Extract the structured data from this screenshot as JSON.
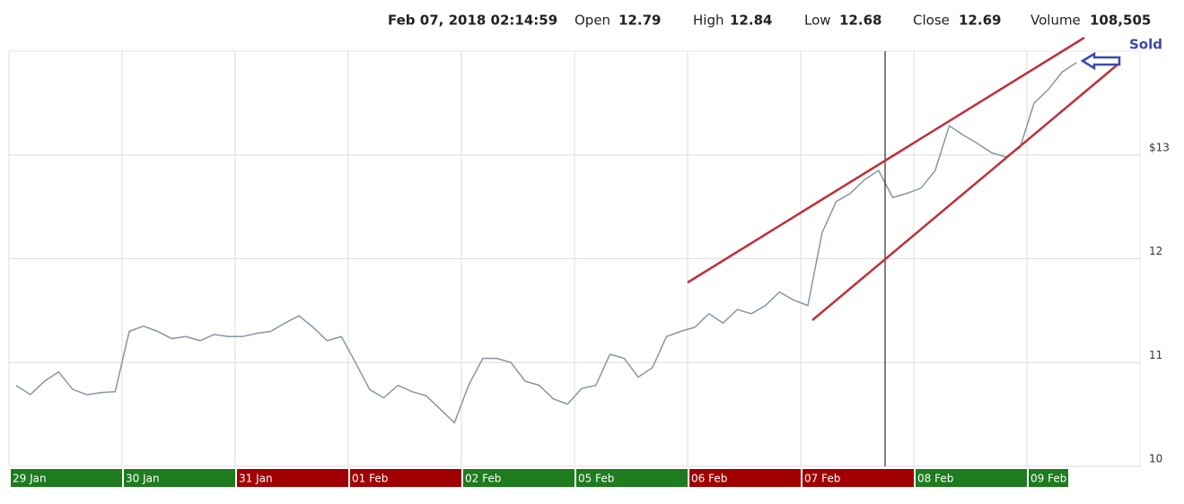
{
  "header": {
    "datetime": "Feb 07, 2018 02:14:59",
    "fields": [
      {
        "label": "Open",
        "value": 12.79
      },
      {
        "label": "High",
        "value": 12.84
      },
      {
        "label": "Low",
        "value": 12.68
      },
      {
        "label": "Close",
        "value": 12.69
      },
      {
        "label": "Volume",
        "value": {
          "value": 108505,
          "label": "108,505"
        }
      }
    ]
  },
  "chart_data": {
    "type": "line",
    "color": "#8796a5",
    "ylim": [
      10,
      14
    ],
    "yticks": [
      10,
      11,
      12,
      {
        "value": 13,
        "label": "$13"
      }
    ],
    "grid": true,
    "annotation": "Sold",
    "days": [
      {
        "label": "29 Jan",
        "color": "#1e7b1e",
        "values": [
          10.78,
          10.69,
          10.82,
          10.91,
          10.74,
          10.69,
          10.71,
          10.72
        ]
      },
      {
        "label": "30 Jan",
        "color": "#1e7b1e",
        "values": [
          11.3,
          11.35,
          11.3,
          11.23,
          11.25,
          11.21,
          11.27,
          11.25
        ]
      },
      {
        "label": "31 Jan",
        "color": "#a00000",
        "values": [
          11.25,
          11.28,
          11.3,
          11.38,
          11.45,
          11.34,
          11.21,
          11.25
        ]
      },
      {
        "label": "01 Feb",
        "color": "#a00000",
        "values": [
          11.0,
          10.74,
          10.66,
          10.78,
          10.72,
          10.68,
          10.55,
          10.42
        ]
      },
      {
        "label": "02 Feb",
        "color": "#1e7b1e",
        "values": [
          10.78,
          11.04,
          11.04,
          11.0,
          10.82,
          10.78,
          10.65,
          10.6
        ]
      },
      {
        "label": "05 Feb",
        "color": "#1e7b1e",
        "values": [
          10.75,
          10.78,
          11.08,
          11.04,
          10.86,
          10.95,
          11.25,
          11.3
        ]
      },
      {
        "label": "06 Feb",
        "color": "#a00000",
        "values": [
          11.34,
          11.47,
          11.38,
          11.51,
          11.47,
          11.55,
          11.68,
          11.6
        ]
      },
      {
        "label": "07 Feb",
        "color": "#a00000",
        "values": [
          11.55,
          12.25,
          12.55,
          12.63,
          12.76,
          12.85,
          12.59,
          12.63
        ]
      },
      {
        "label": "08 Feb",
        "color": "#1e7b1e",
        "values": [
          12.68,
          12.85,
          13.28,
          13.19,
          13.11,
          13.02,
          12.98,
          13.07
        ]
      },
      {
        "label": "09 Feb",
        "color": "#1e7b1e",
        "values": [
          13.5,
          13.63,
          13.8,
          13.89
        ]
      }
    ]
  }
}
